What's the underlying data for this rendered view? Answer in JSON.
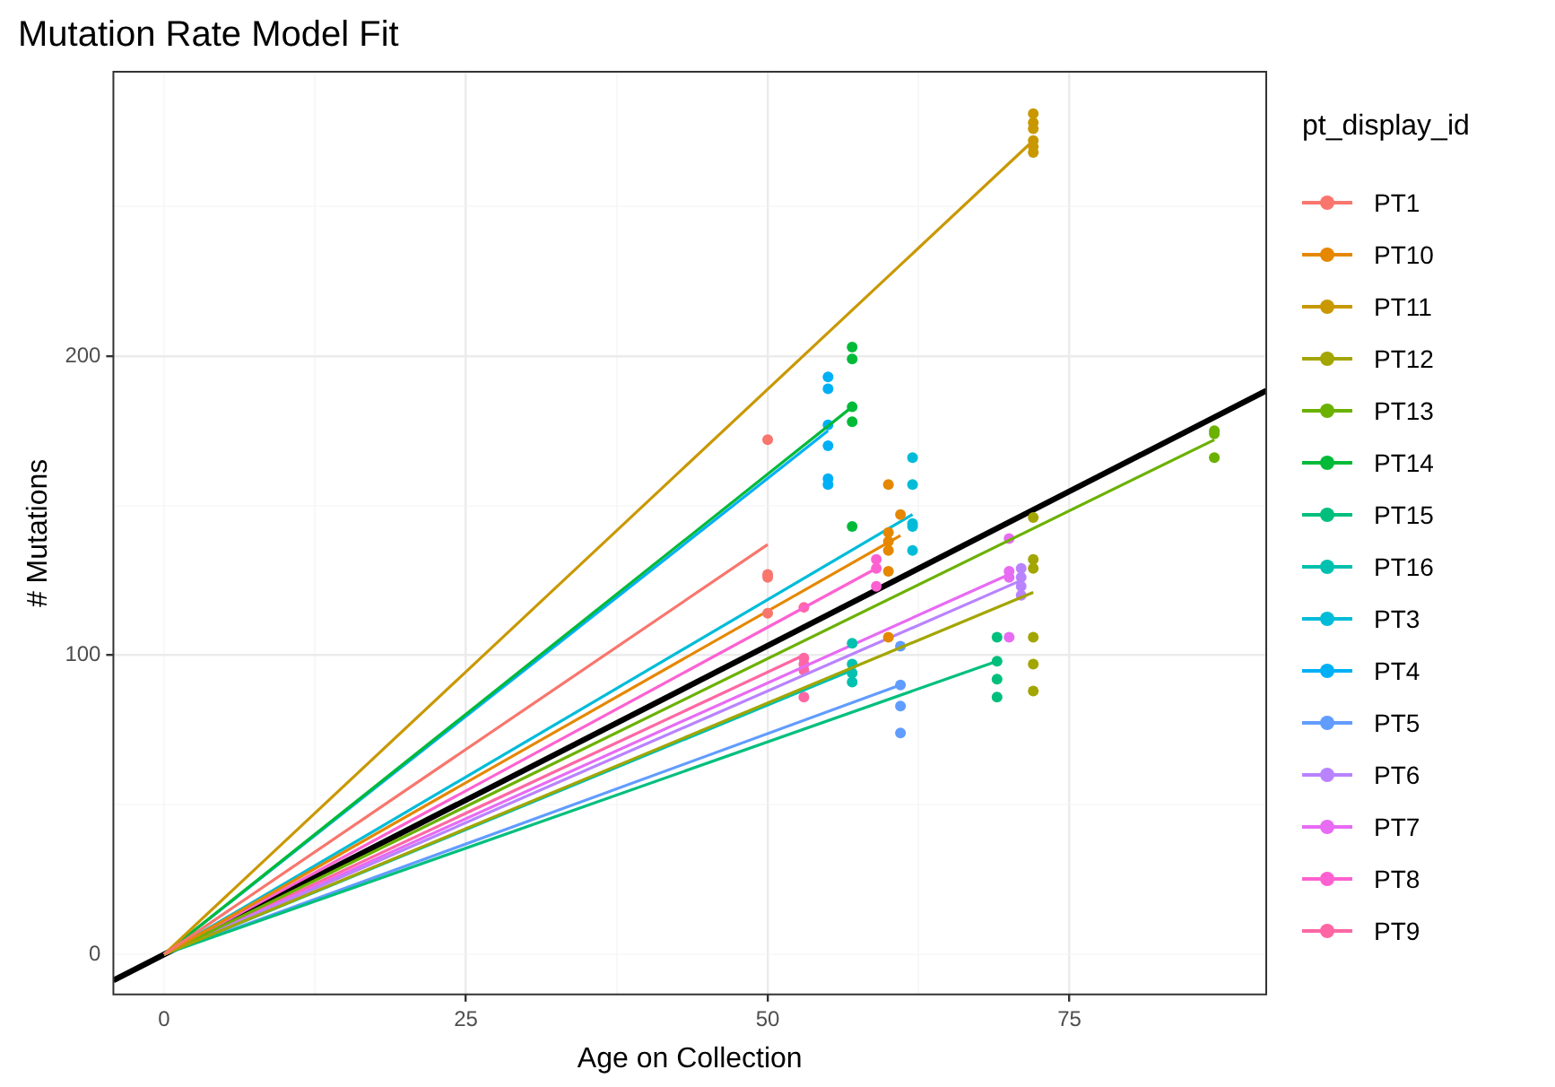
{
  "chart_data": {
    "type": "scatter",
    "title": "Mutation Rate Model Fit",
    "xlabel": "Age on Collection",
    "ylabel": "# Mutations",
    "legend_title": "pt_display_id",
    "legend": "right",
    "grid": true,
    "marker": "circle",
    "xlim": [
      -4.2,
      91.3
    ],
    "xticks": [
      0,
      {
        "value": 12.5,
        "label": null
      },
      25,
      {
        "value": 37.5,
        "label": null
      },
      50,
      {
        "value": 62.5,
        "label": null
      },
      75
    ],
    "ylim": [
      -13.4,
      295
    ],
    "yticks": [
      0,
      {
        "value": 50,
        "label": null
      },
      100,
      {
        "value": 150,
        "label": null
      },
      200,
      {
        "value": 250,
        "label": null
      }
    ],
    "series": [
      {
        "name": "PT1",
        "color": "#f8766d",
        "x": [
          50,
          50,
          50,
          50
        ],
        "values": [
          172,
          127,
          126,
          114
        ]
      },
      {
        "color": "#f8766d",
        "type": "line",
        "marker": "none",
        "x": [
          0,
          50
        ],
        "values": [
          0,
          137
        ]
      },
      {
        "name": "PT10",
        "color": "#e58700",
        "x": [
          60,
          61,
          60,
          60,
          60,
          60,
          60
        ],
        "values": [
          157,
          147,
          141,
          138,
          135,
          128,
          106
        ]
      },
      {
        "color": "#e58700",
        "type": "line",
        "marker": "none",
        "x": [
          0,
          61
        ],
        "values": [
          0,
          140
        ]
      },
      {
        "name": "PT11",
        "color": "#c99800",
        "x": [
          72,
          72,
          72,
          72,
          72,
          72
        ],
        "values": [
          281,
          278,
          276,
          272,
          270,
          268
        ]
      },
      {
        "color": "#c99800",
        "type": "line",
        "marker": "none",
        "x": [
          0,
          72
        ],
        "values": [
          0,
          272
        ]
      },
      {
        "name": "PT12",
        "color": "#a3a500",
        "x": [
          72,
          72,
          72,
          72,
          72,
          72
        ],
        "values": [
          146,
          132,
          129,
          106,
          97,
          88
        ]
      },
      {
        "color": "#a3a500",
        "type": "line",
        "marker": "none",
        "x": [
          0,
          72
        ],
        "values": [
          0,
          121
        ]
      },
      {
        "name": "PT13",
        "color": "#6bb100",
        "x": [
          87,
          87,
          87
        ],
        "values": [
          175,
          174,
          166
        ]
      },
      {
        "color": "#6bb100",
        "type": "line",
        "marker": "none",
        "x": [
          0,
          87
        ],
        "values": [
          0,
          172
        ]
      },
      {
        "name": "PT14",
        "color": "#00ba38",
        "x": [
          57,
          57,
          57,
          57,
          57
        ],
        "values": [
          203,
          199,
          183,
          178,
          143
        ]
      },
      {
        "color": "#00ba38",
        "type": "line",
        "marker": "none",
        "x": [
          0,
          57
        ],
        "values": [
          0,
          183
        ]
      },
      {
        "name": "PT15",
        "color": "#00bf7d",
        "x": [
          69,
          69,
          69,
          69
        ],
        "values": [
          106,
          98,
          92,
          86
        ]
      },
      {
        "color": "#00bf7d",
        "type": "line",
        "marker": "none",
        "x": [
          0,
          69
        ],
        "values": [
          0,
          98
        ]
      },
      {
        "name": "PT16",
        "color": "#00c0af",
        "x": [
          57,
          57,
          57,
          57
        ],
        "values": [
          104,
          97,
          94,
          91
        ]
      },
      {
        "color": "#00c0af",
        "type": "line",
        "marker": "none",
        "x": [
          0,
          57
        ],
        "values": [
          0,
          95
        ]
      },
      {
        "name": "PT3",
        "color": "#00bcd8",
        "x": [
          62,
          62,
          62,
          62,
          62
        ],
        "values": [
          166,
          157,
          144,
          143,
          135
        ]
      },
      {
        "color": "#00bcd8",
        "type": "line",
        "marker": "none",
        "x": [
          0,
          62
        ],
        "values": [
          0,
          147
        ]
      },
      {
        "name": "PT4",
        "color": "#00b0f6",
        "x": [
          55,
          55,
          55,
          55,
          55,
          55
        ],
        "values": [
          193,
          189,
          177,
          170,
          159,
          157
        ]
      },
      {
        "color": "#00b0f6",
        "type": "line",
        "marker": "none",
        "x": [
          0,
          55
        ],
        "values": [
          0,
          175
        ]
      },
      {
        "name": "PT5",
        "color": "#619cff",
        "x": [
          61,
          61,
          61,
          61
        ],
        "values": [
          103,
          90,
          83,
          74
        ]
      },
      {
        "color": "#619cff",
        "type": "line",
        "marker": "none",
        "x": [
          0,
          61
        ],
        "values": [
          0,
          90
        ]
      },
      {
        "name": "PT6",
        "color": "#b983ff",
        "x": [
          71,
          71,
          71,
          71
        ],
        "values": [
          129,
          126,
          123,
          120
        ]
      },
      {
        "color": "#b983ff",
        "type": "line",
        "marker": "none",
        "x": [
          0,
          71
        ],
        "values": [
          0,
          125
        ]
      },
      {
        "name": "PT7",
        "color": "#e76bf3",
        "x": [
          70,
          70,
          70,
          70
        ],
        "values": [
          139,
          128,
          126,
          106
        ]
      },
      {
        "color": "#e76bf3",
        "type": "line",
        "marker": "none",
        "x": [
          0,
          70
        ],
        "values": [
          0,
          127
        ]
      },
      {
        "name": "PT8",
        "color": "#fd61d1",
        "x": [
          59,
          59,
          59
        ],
        "values": [
          132,
          129,
          123
        ]
      },
      {
        "color": "#fd61d1",
        "type": "line",
        "marker": "none",
        "x": [
          0,
          59
        ],
        "values": [
          0,
          129
        ]
      },
      {
        "name": "PT9",
        "color": "#ff67a4",
        "x": [
          53,
          53,
          53,
          53,
          53
        ],
        "values": [
          116,
          99,
          97,
          95,
          86
        ]
      },
      {
        "color": "#ff67a4",
        "type": "line",
        "marker": "none",
        "x": [
          0,
          53
        ],
        "values": [
          0,
          100
        ]
      },
      {
        "color": "#000000",
        "type": "line",
        "marker": "none",
        "x": [
          -4.2,
          91.3
        ],
        "values": [
          -8.7,
          188.4
        ]
      }
    ]
  }
}
